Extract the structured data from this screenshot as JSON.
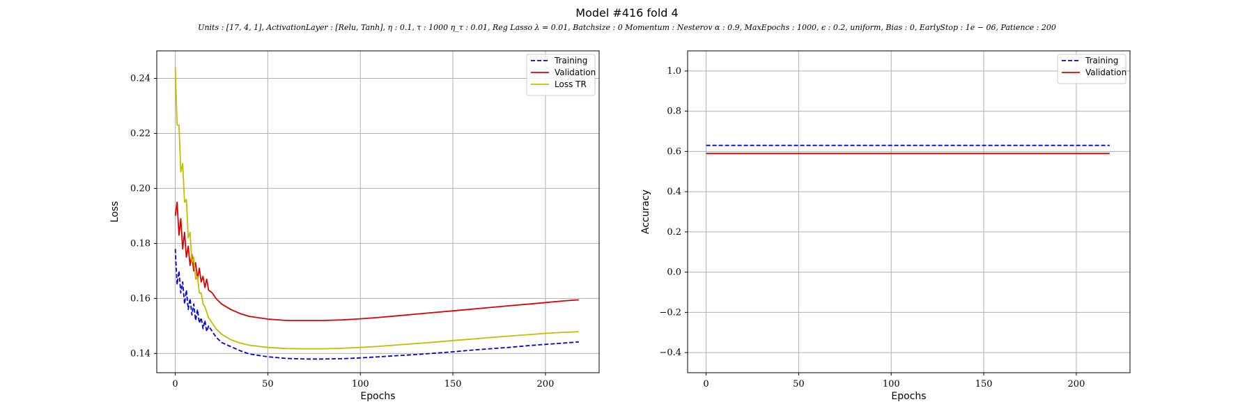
{
  "figure": {
    "title": "Model #416 fold 4",
    "subtitle": "Units : [17, 4, 1], ActivationLayer : [Relu, Tanh], η : 0.1, τ : 1000 η_τ : 0.01, Reg Lasso λ = 0.01, Batchsize : 0 Momentum : Nesterov α : 0.9, MaxEpochs : 1000, ϵ : 0.2, uniform, Bias : 0, EarlyStop : 1e − 06, Patience : 200"
  },
  "colors": {
    "training": "#0000dd",
    "validation": "#dd0000",
    "loss_tr": "#bfbf00",
    "grid": "#b0b0b0"
  },
  "chart_data": [
    {
      "type": "line",
      "xlabel": "Epochs",
      "ylabel": "Loss",
      "xlim": [
        -10,
        229
      ],
      "ylim": [
        0.133,
        0.25
      ],
      "xticks": [
        0,
        50,
        100,
        150,
        200
      ],
      "yticks": [
        0.14,
        0.16,
        0.18,
        0.2,
        0.22,
        0.24
      ],
      "ytick_labels": [
        "0.14",
        "0.16",
        "0.18",
        "0.20",
        "0.22",
        "0.24"
      ],
      "grid": true,
      "legend_position": "top-right",
      "series": [
        {
          "name": "Training",
          "style": "dashed",
          "color": "#0000dd",
          "x": [
            0,
            1,
            2,
            3,
            4,
            5,
            6,
            7,
            8,
            9,
            10,
            11,
            12,
            13,
            14,
            15,
            16,
            17,
            18,
            20,
            22,
            25,
            30,
            35,
            40,
            50,
            60,
            70,
            80,
            90,
            100,
            110,
            120,
            130,
            140,
            150,
            160,
            170,
            180,
            190,
            200,
            210,
            218
          ],
          "y": [
            0.178,
            0.165,
            0.17,
            0.162,
            0.166,
            0.158,
            0.163,
            0.156,
            0.16,
            0.154,
            0.158,
            0.152,
            0.156,
            0.151,
            0.153,
            0.149,
            0.152,
            0.148,
            0.15,
            0.148,
            0.146,
            0.144,
            0.1425,
            0.141,
            0.1398,
            0.1388,
            0.1382,
            0.138,
            0.138,
            0.1381,
            0.1384,
            0.1388,
            0.1392,
            0.1396,
            0.1401,
            0.1406,
            0.1412,
            0.1417,
            0.1422,
            0.1428,
            0.1433,
            0.1438,
            0.1442
          ]
        },
        {
          "name": "Validation",
          "style": "solid",
          "color": "#dd0000",
          "x": [
            0,
            1,
            2,
            3,
            4,
            5,
            6,
            7,
            8,
            9,
            10,
            11,
            12,
            13,
            14,
            15,
            16,
            17,
            18,
            20,
            22,
            25,
            30,
            35,
            40,
            50,
            60,
            70,
            80,
            90,
            100,
            110,
            120,
            130,
            140,
            150,
            160,
            170,
            180,
            190,
            200,
            210,
            218
          ],
          "y": [
            0.19,
            0.195,
            0.183,
            0.189,
            0.178,
            0.184,
            0.175,
            0.179,
            0.172,
            0.176,
            0.17,
            0.173,
            0.167,
            0.171,
            0.166,
            0.168,
            0.164,
            0.167,
            0.163,
            0.162,
            0.16,
            0.158,
            0.156,
            0.1545,
            0.1535,
            0.1525,
            0.152,
            0.152,
            0.152,
            0.1522,
            0.1526,
            0.1531,
            0.1537,
            0.1543,
            0.1549,
            0.1555,
            0.1561,
            0.1567,
            0.1573,
            0.1579,
            0.1585,
            0.1591,
            0.1595
          ]
        },
        {
          "name": "Loss TR",
          "style": "solid",
          "color": "#bfbf00",
          "x": [
            0,
            1,
            2,
            3,
            4,
            5,
            6,
            7,
            8,
            9,
            10,
            11,
            12,
            13,
            14,
            15,
            16,
            17,
            18,
            20,
            22,
            25,
            30,
            35,
            40,
            50,
            60,
            70,
            80,
            90,
            100,
            110,
            120,
            130,
            140,
            150,
            160,
            170,
            180,
            190,
            200,
            210,
            218
          ],
          "y": [
            0.244,
            0.223,
            0.223,
            0.206,
            0.209,
            0.195,
            0.196,
            0.182,
            0.184,
            0.173,
            0.175,
            0.167,
            0.168,
            0.162,
            0.162,
            0.158,
            0.157,
            0.155,
            0.153,
            0.151,
            0.149,
            0.147,
            0.145,
            0.1438,
            0.143,
            0.1422,
            0.1418,
            0.1417,
            0.1417,
            0.1419,
            0.1422,
            0.1426,
            0.1431,
            0.1436,
            0.1441,
            0.1447,
            0.1452,
            0.1458,
            0.1463,
            0.1468,
            0.1473,
            0.1477,
            0.1479
          ]
        }
      ]
    },
    {
      "type": "line",
      "xlabel": "Epochs",
      "ylabel": "Accuracy",
      "xlim": [
        -10,
        229
      ],
      "ylim": [
        -0.5,
        1.1
      ],
      "xticks": [
        0,
        50,
        100,
        150,
        200
      ],
      "yticks": [
        -0.4,
        -0.2,
        0.0,
        0.2,
        0.4,
        0.6,
        0.8,
        1.0
      ],
      "ytick_labels": [
        "−0.4",
        "−0.2",
        "0.0",
        "0.2",
        "0.4",
        "0.6",
        "0.8",
        "1.0"
      ],
      "grid": true,
      "legend_position": "top-right",
      "series": [
        {
          "name": "Training",
          "style": "dashed",
          "color": "#0000dd",
          "x": [
            0,
            218
          ],
          "y": [
            0.63,
            0.63
          ]
        },
        {
          "name": "Validation",
          "style": "solid",
          "color": "#dd0000",
          "x": [
            0,
            218
          ],
          "y": [
            0.59,
            0.59
          ]
        }
      ]
    }
  ]
}
